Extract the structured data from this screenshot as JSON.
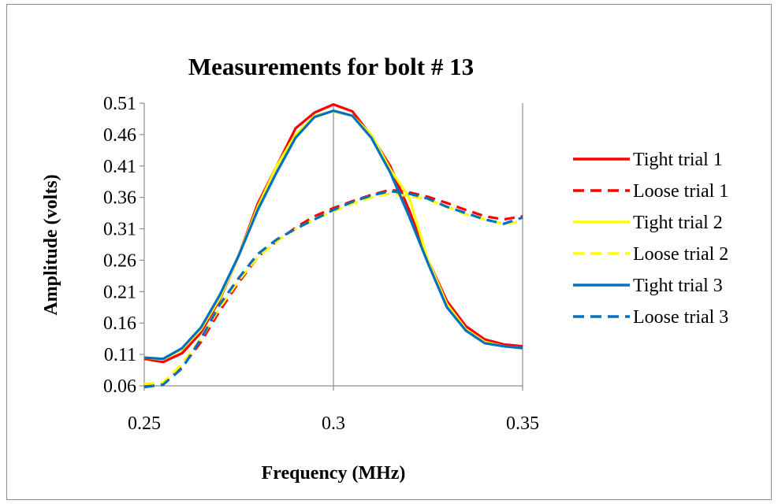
{
  "chart_data": {
    "type": "line",
    "title": "Measurements for bolt # 13",
    "xlabel": "Frequency (MHz)",
    "ylabel": "Amplitude (volts)",
    "xlim": [
      0.25,
      0.35
    ],
    "ylim": [
      0.06,
      0.51
    ],
    "xticks": [
      "0.25",
      "0.3",
      "0.35"
    ],
    "xtick_values": [
      0.25,
      0.3,
      0.35
    ],
    "yticks": [
      "0.06",
      "0.11",
      "0.16",
      "0.21",
      "0.26",
      "0.31",
      "0.36",
      "0.41",
      "0.46",
      "0.51"
    ],
    "ytick_values": [
      0.06,
      0.11,
      0.16,
      0.21,
      0.26,
      0.31,
      0.36,
      0.41,
      0.46,
      0.51
    ],
    "grid": "vertical",
    "legend_position": "right",
    "x": [
      0.25,
      0.255,
      0.26,
      0.265,
      0.27,
      0.275,
      0.28,
      0.285,
      0.29,
      0.295,
      0.3,
      0.305,
      0.31,
      0.315,
      0.32,
      0.325,
      0.33,
      0.335,
      0.34,
      0.345,
      0.35
    ],
    "series": [
      {
        "name": "Tight trial 1",
        "color": "#ff0000",
        "dash": "solid",
        "values": [
          0.103,
          0.098,
          0.112,
          0.145,
          0.198,
          0.268,
          0.35,
          0.41,
          0.47,
          0.495,
          0.508,
          0.497,
          0.458,
          0.41,
          0.34,
          0.26,
          0.195,
          0.155,
          0.134,
          0.126,
          0.123
        ]
      },
      {
        "name": "Loose trial 1",
        "color": "#ff0000",
        "dash": "dashed",
        "values": [
          0.06,
          0.063,
          0.09,
          0.13,
          0.18,
          0.225,
          0.265,
          0.29,
          0.312,
          0.33,
          0.343,
          0.354,
          0.364,
          0.372,
          0.368,
          0.361,
          0.351,
          0.34,
          0.33,
          0.325,
          0.33
        ]
      },
      {
        "name": "Tight trial 2",
        "color": "#ffff00",
        "dash": "solid",
        "values": [
          0.105,
          0.102,
          0.118,
          0.15,
          0.2,
          0.268,
          0.345,
          0.41,
          0.46,
          0.49,
          0.497,
          0.49,
          0.46,
          0.405,
          0.36,
          0.26,
          0.19,
          0.15,
          0.13,
          0.123,
          0.12
        ]
      },
      {
        "name": "Loose trial 2",
        "color": "#ffff00",
        "dash": "dashed",
        "values": [
          0.063,
          0.065,
          0.095,
          0.135,
          0.185,
          0.228,
          0.265,
          0.29,
          0.31,
          0.325,
          0.338,
          0.35,
          0.36,
          0.366,
          0.362,
          0.357,
          0.345,
          0.333,
          0.325,
          0.318,
          0.322
        ]
      },
      {
        "name": "Tight trial 3",
        "color": "#0070c0",
        "dash": "solid",
        "values": [
          0.105,
          0.103,
          0.12,
          0.153,
          0.205,
          0.268,
          0.34,
          0.4,
          0.455,
          0.488,
          0.498,
          0.49,
          0.455,
          0.4,
          0.33,
          0.255,
          0.185,
          0.148,
          0.128,
          0.123,
          0.12
        ]
      },
      {
        "name": "Loose trial 3",
        "color": "#0070c0",
        "dash": "dashed",
        "values": [
          0.058,
          0.062,
          0.088,
          0.135,
          0.19,
          0.232,
          0.27,
          0.293,
          0.31,
          0.325,
          0.34,
          0.353,
          0.363,
          0.37,
          0.366,
          0.358,
          0.345,
          0.335,
          0.325,
          0.318,
          0.328
        ]
      }
    ]
  }
}
